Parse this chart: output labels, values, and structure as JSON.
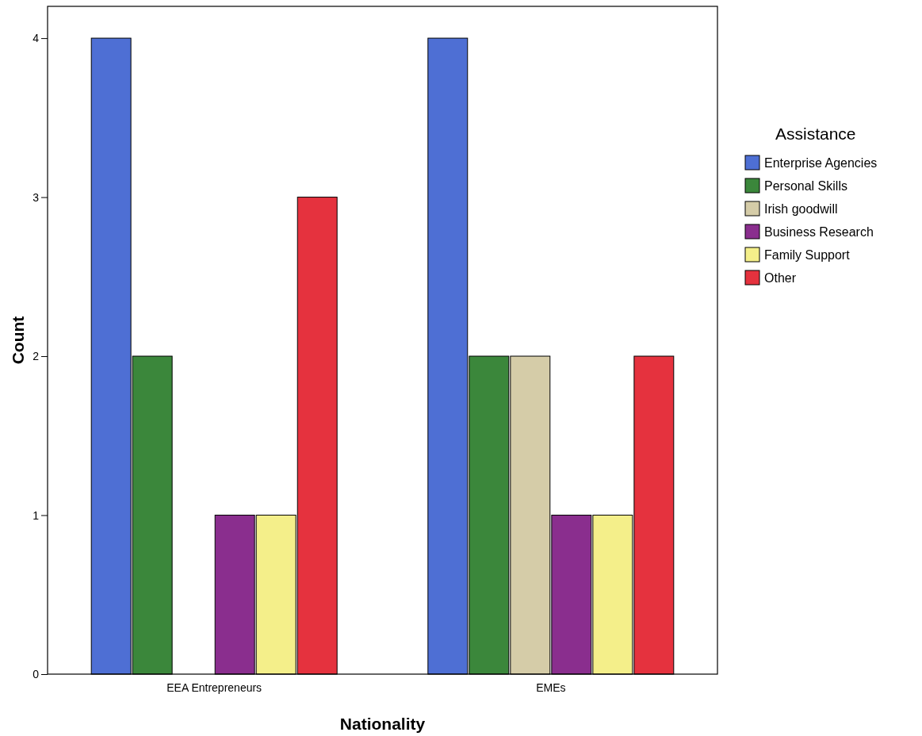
{
  "chart_data": {
    "type": "bar",
    "xlabel": "Nationality",
    "ylabel": "Count",
    "legend_title": "Assistance",
    "categories": [
      "EEA Entrepreneurs",
      "EMEs"
    ],
    "series": [
      {
        "name": "Enterprise Agencies",
        "color": "#4e6fd4",
        "values": [
          4,
          4
        ]
      },
      {
        "name": "Personal Skills",
        "color": "#3b873b",
        "values": [
          2,
          2
        ]
      },
      {
        "name": "Irish goodwill",
        "color": "#d5cca8",
        "values": [
          0,
          2
        ]
      },
      {
        "name": "Business Research",
        "color": "#8a2e8e",
        "values": [
          1,
          1
        ]
      },
      {
        "name": "Family Support",
        "color": "#f4ef8a",
        "values": [
          1,
          1
        ]
      },
      {
        "name": "Other",
        "color": "#e5323e",
        "values": [
          3,
          2
        ]
      }
    ],
    "ylim": [
      0,
      4.2
    ],
    "yticks": [
      0,
      1,
      2,
      3,
      4
    ],
    "grid": false,
    "legend": "right"
  }
}
